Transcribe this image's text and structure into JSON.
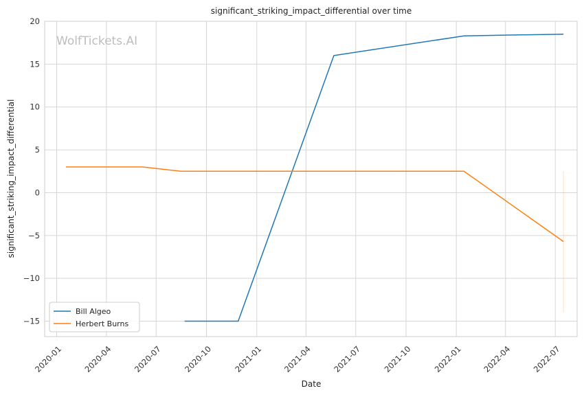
{
  "watermark": "WolfTickets.AI",
  "chart_data": {
    "type": "line",
    "title": "significant_striking_impact_differential over time",
    "xlabel": "Date",
    "ylabel": "significant_striking_impact_differential",
    "xlim": [
      "2019-12-10",
      "2022-08-10"
    ],
    "ylim": [
      -16.8,
      20
    ],
    "grid": true,
    "legend_position": "lower-left",
    "x_ticks": [
      "2020-01",
      "2020-04",
      "2020-07",
      "2020-10",
      "2021-01",
      "2021-04",
      "2021-07",
      "2021-10",
      "2022-01",
      "2022-04",
      "2022-07"
    ],
    "y_ticks": [
      20,
      15,
      10,
      5,
      0,
      -5,
      -10,
      -15
    ],
    "y_tick_labels": [
      "20",
      "15",
      "10",
      "5",
      "0",
      "−5",
      "−10",
      "−15"
    ],
    "series": [
      {
        "name": "Bill Algeo",
        "color": "#1f77b4",
        "points": [
          {
            "x": "2020-08-22",
            "y": -15
          },
          {
            "x": "2020-11-28",
            "y": -15
          },
          {
            "x": "2021-05-22",
            "y": 16
          },
          {
            "x": "2022-01-15",
            "y": 18.3
          },
          {
            "x": "2022-07-16",
            "y": 18.5
          }
        ]
      },
      {
        "name": "Herbert Burns",
        "color": "#ff7f0e",
        "points": [
          {
            "x": "2020-01-18",
            "y": 3
          },
          {
            "x": "2020-06-06",
            "y": 3
          },
          {
            "x": "2020-08-15",
            "y": 2.5
          },
          {
            "x": "2022-01-15",
            "y": 2.5
          },
          {
            "x": "2022-07-16",
            "y": -5.7
          }
        ],
        "range_band": {
          "x": "2022-07-16",
          "y_min": -14,
          "y_max": 2.5
        }
      }
    ]
  }
}
